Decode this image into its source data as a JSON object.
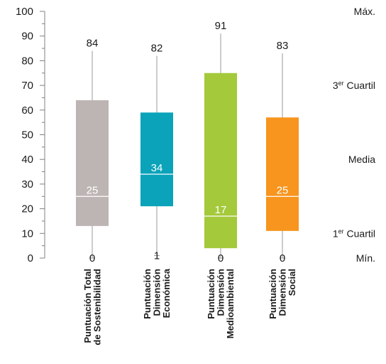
{
  "chart_data": {
    "type": "boxplot",
    "ylim": [
      0,
      100
    ],
    "yticks": [
      0,
      10,
      20,
      30,
      40,
      50,
      60,
      70,
      80,
      90,
      100
    ],
    "categories": [
      {
        "label_lines": [
          "Puntuación Total",
          "de Sostenibilidad"
        ],
        "min": 0,
        "q1": 13,
        "median": 25,
        "q3": 64,
        "max": 84,
        "color": "#bdb5b3"
      },
      {
        "label_lines": [
          "Puntuación",
          "Dimensión",
          "Económica"
        ],
        "min": 1,
        "q1": 21,
        "median": 34,
        "q3": 59,
        "max": 82,
        "color": "#0aa3ba"
      },
      {
        "label_lines": [
          "Puntuación",
          "Dimensión",
          "Medioambiental"
        ],
        "min": 0,
        "q1": 4,
        "median": 17,
        "q3": 75,
        "max": 91,
        "color": "#a4c93b"
      },
      {
        "label_lines": [
          "Puntuación",
          "Dimensión",
          "Social"
        ],
        "min": 0,
        "q1": 11,
        "median": 25,
        "q3": 57,
        "max": 83,
        "color": "#f7951e"
      }
    ],
    "legend": [
      {
        "text": "Máx.",
        "sup": "",
        "rest": "",
        "y": 100
      },
      {
        "text": "3",
        "sup": "er",
        "rest": " Cuartil",
        "y": 70
      },
      {
        "text": "Media",
        "sup": "",
        "rest": "",
        "y": 40
      },
      {
        "text": "1",
        "sup": "er",
        "rest": " Cuartil",
        "y": 10
      },
      {
        "text": "Mín.",
        "sup": "",
        "rest": "",
        "y": 0
      }
    ]
  }
}
